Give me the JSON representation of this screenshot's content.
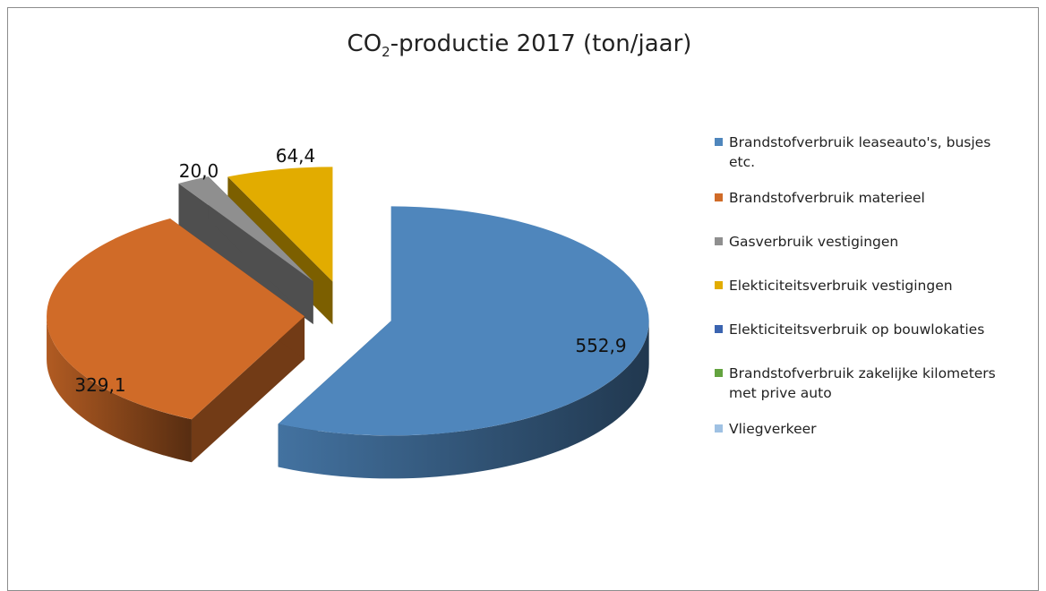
{
  "chart_data": {
    "type": "pie",
    "title": {
      "prefix": "CO",
      "subscript": "2",
      "suffix": "-productie 2017 (ton/jaar)"
    },
    "series": [
      {
        "name": "Brandstofverbruik leaseauto's, busjes etc.",
        "value": 552.9,
        "label": "552,9",
        "color": "#4f86bc"
      },
      {
        "name": "Brandstofverbruik materieel",
        "value": 329.1,
        "label": "329,1",
        "color": "#d06b28"
      },
      {
        "name": "Gasverbruik vestigingen",
        "value": 20.0,
        "label": "20,0",
        "color": "#8f8f8f"
      },
      {
        "name": "Elekticiteitsverbruik vestigingen",
        "value": 64.4,
        "label": "64,4",
        "color": "#e2ac00"
      },
      {
        "name": "Elekticiteitsverbruik op bouwlokaties",
        "value": 0,
        "label": "",
        "color": "#3b64b0"
      },
      {
        "name": "Brandstofverbruik zakelijke kilometers met prive auto",
        "value": 0,
        "label": "",
        "color": "#63a33f"
      },
      {
        "name": "Vliegverkeer",
        "value": 0,
        "label": "",
        "color": "#9fc1e3"
      }
    ],
    "exploded": true,
    "three_d": true,
    "legend_position": "right"
  }
}
